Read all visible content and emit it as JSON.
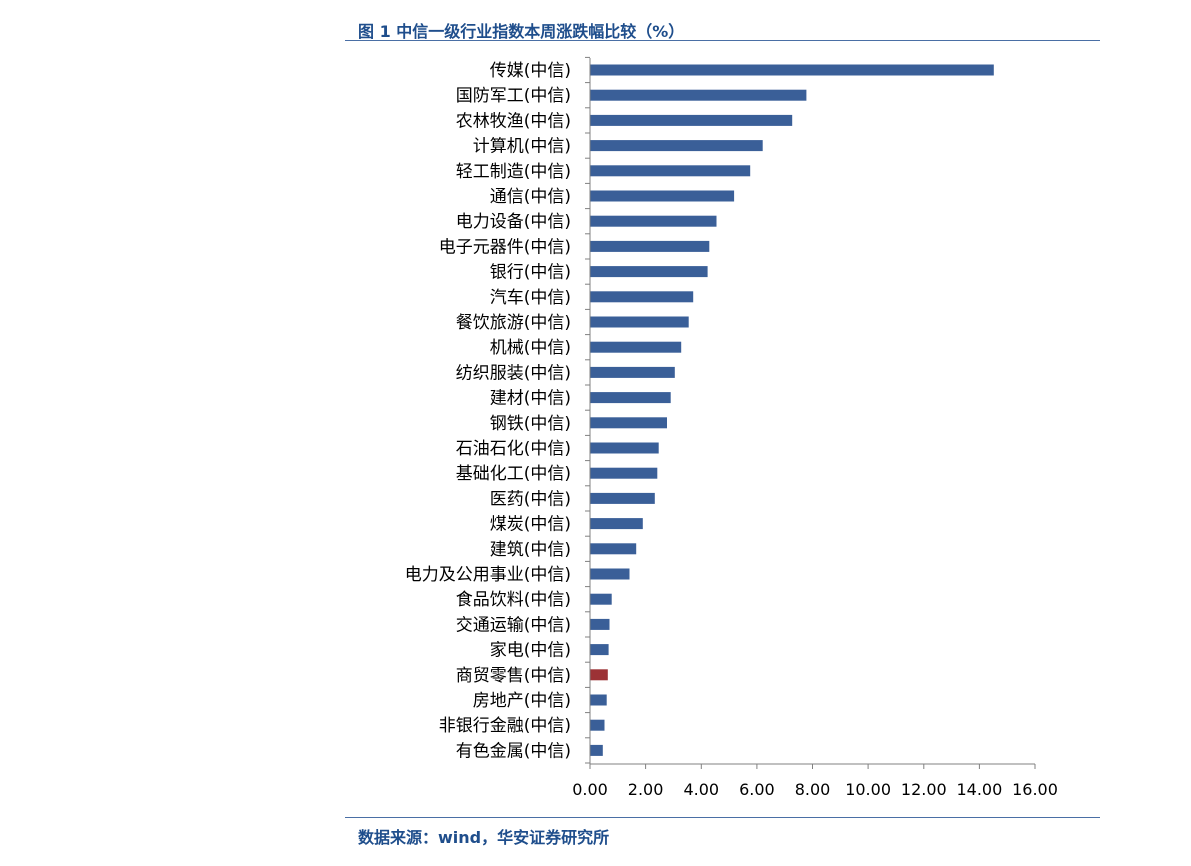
{
  "header": {
    "title": "图 1 中信一级行业指数本周涨跌幅比较（%）"
  },
  "footer": {
    "source": "数据来源：wind，华安证券研究所"
  },
  "colors": {
    "bar": "#3a5f98",
    "highlight_bar": "#9c3236",
    "title": "#1f4e8c",
    "rule": "#4a6fa5"
  },
  "chart_data": {
    "type": "bar",
    "orientation": "horizontal",
    "title": "",
    "xlabel": "",
    "ylabel": "",
    "xlim": [
      0,
      16
    ],
    "xticks": [
      0,
      2,
      4,
      6,
      8,
      10,
      12,
      14,
      16
    ],
    "tick_labels": [
      "0.00",
      "2.00",
      "4.00",
      "6.00",
      "8.00",
      "10.00",
      "12.00",
      "14.00",
      "16.00"
    ],
    "grid": false,
    "categories": [
      "传媒(中信)",
      "国防军工(中信)",
      "农林牧渔(中信)",
      "计算机(中信)",
      "轻工制造(中信)",
      "通信(中信)",
      "电力设备(中信)",
      "电子元器件(中信)",
      "银行(中信)",
      "汽车(中信)",
      "餐饮旅游(中信)",
      "机械(中信)",
      "纺织服装(中信)",
      "建材(中信)",
      "钢铁(中信)",
      "石油石化(中信)",
      "基础化工(中信)",
      "医药(中信)",
      "煤炭(中信)",
      "建筑(中信)",
      "电力及公用事业(中信)",
      "食品饮料(中信)",
      "交通运输(中信)",
      "家电(中信)",
      "商贸零售(中信)",
      "房地产(中信)",
      "非银行金融(中信)",
      "有色金属(中信)"
    ],
    "values": [
      14.52,
      7.78,
      7.27,
      6.21,
      5.76,
      5.18,
      4.55,
      4.29,
      4.23,
      3.71,
      3.55,
      3.28,
      3.05,
      2.9,
      2.77,
      2.47,
      2.42,
      2.33,
      1.9,
      1.66,
      1.42,
      0.78,
      0.7,
      0.67,
      0.64,
      0.6,
      0.52,
      0.46
    ],
    "highlight": "商贸零售(中信)"
  }
}
